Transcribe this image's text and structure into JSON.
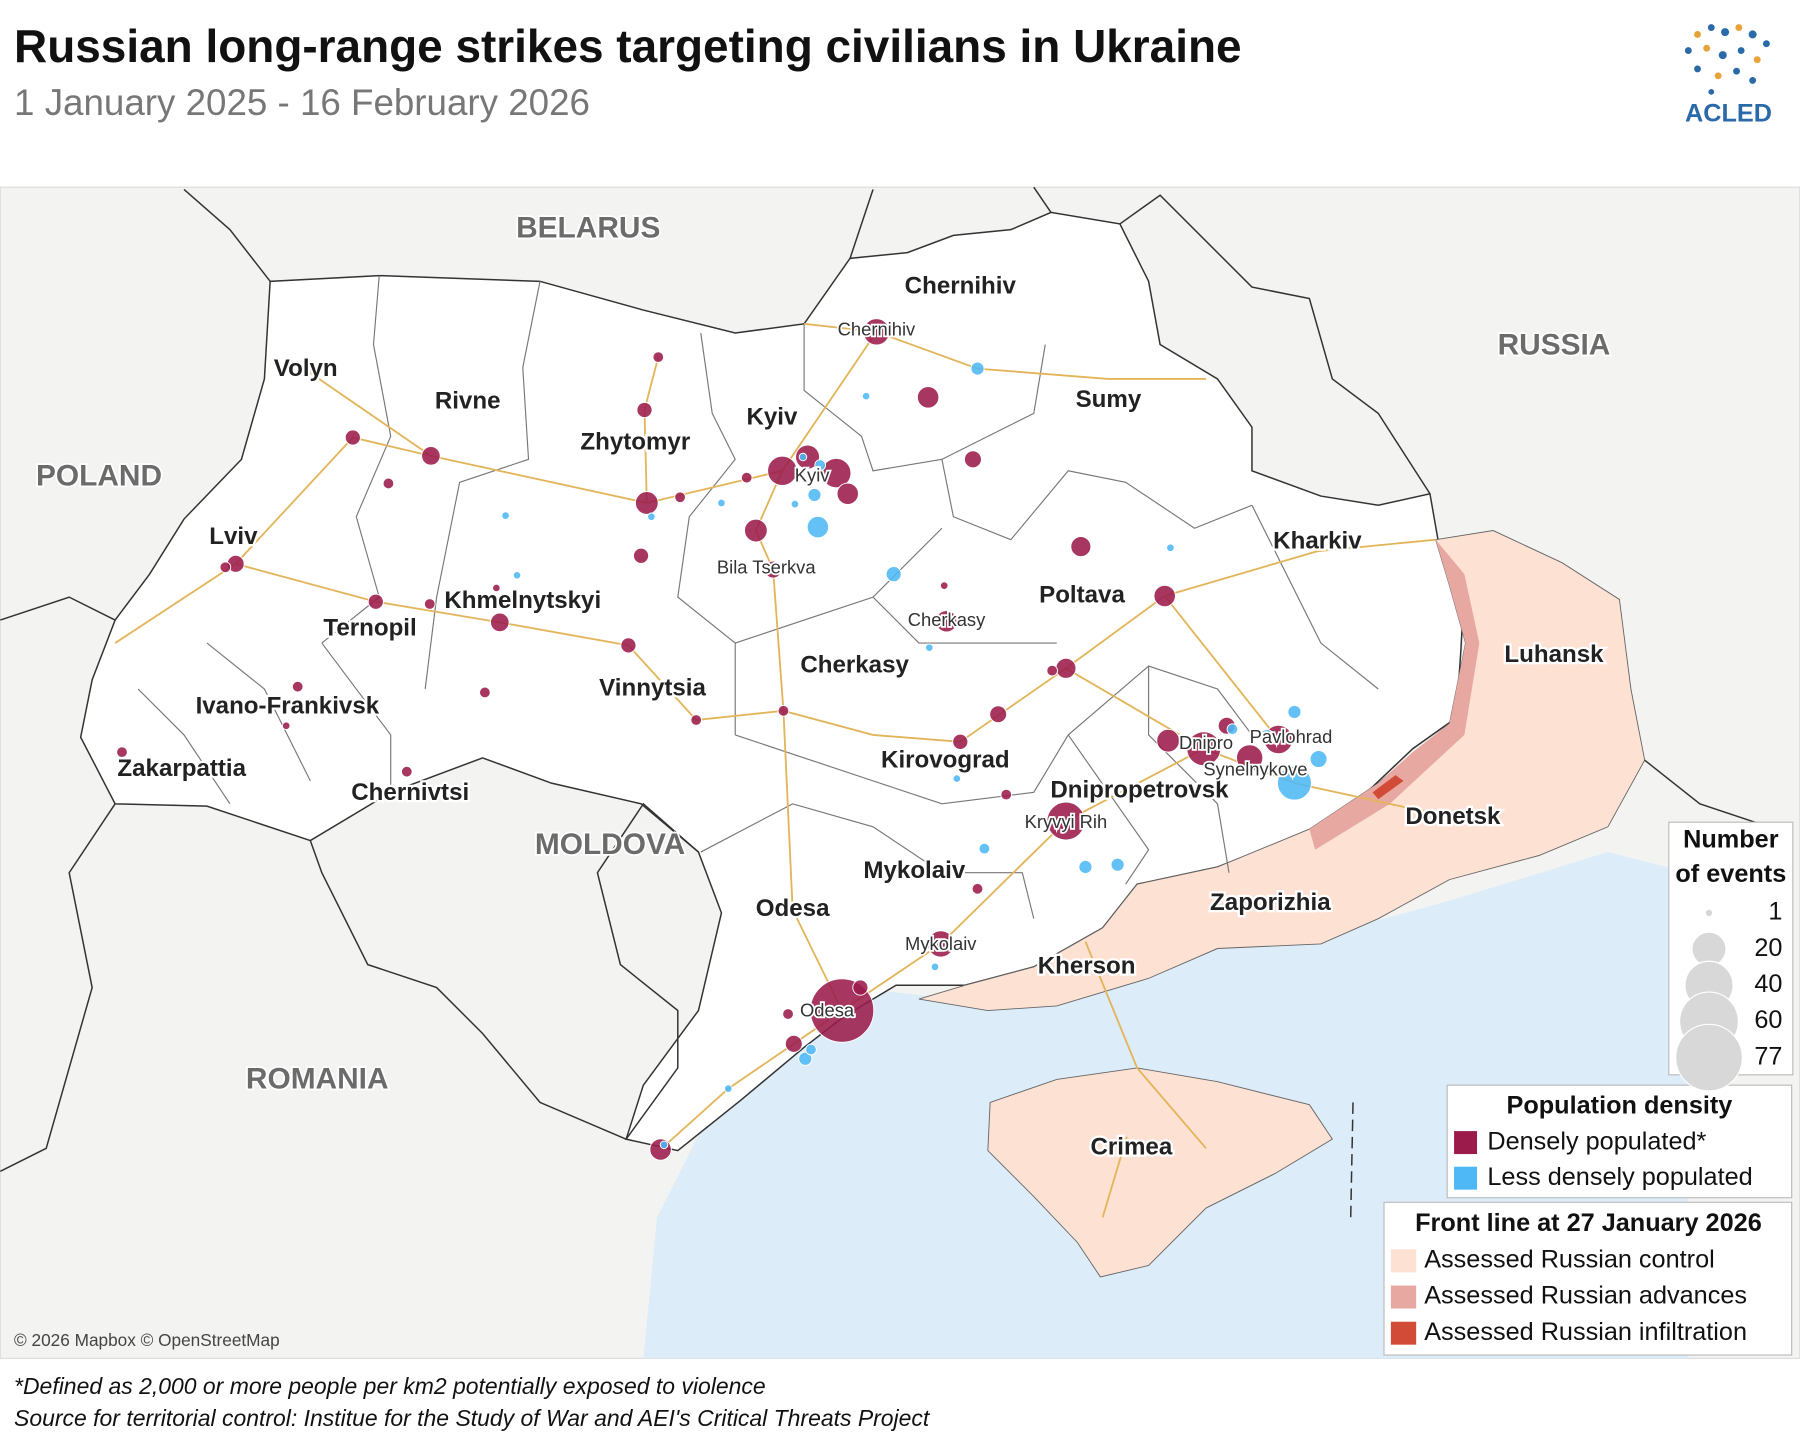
{
  "header": {
    "title": "Russian long-range strikes targeting civilians in Ukraine",
    "subtitle": "1 January 2025 -  16 February 2026",
    "logo": "ACLED"
  },
  "map": {
    "countries": [
      "BELARUS",
      "RUSSIA",
      "POLAND",
      "MOLDOVA",
      "ROMANIA"
    ],
    "oblasts": [
      "Chernihiv",
      "Volyn",
      "Rivne",
      "Zhytomyr",
      "Kyiv",
      "Sumy",
      "Lviv",
      "Khmelnytskyi",
      "Ternopil",
      "Kharkiv",
      "Poltava",
      "Cherkasy",
      "Luhansk",
      "Vinnytsia",
      "Ivano-Frankivsk",
      "Kirovograd",
      "Zakarpattia",
      "Chernivtsi",
      "Dnipropetrovsk",
      "Donetsk",
      "Mykolaiv",
      "Odesa",
      "Zaporizhia",
      "Kherson",
      "Crimea"
    ],
    "cities": [
      "Chernihiv",
      "Kyiv",
      "Bila Tserkva",
      "Cherkasy",
      "Dnipro",
      "Pavlohrad",
      "Synelnykove",
      "Kryvyi Rih",
      "Mykolaiv",
      "Odesa"
    ],
    "attribution": "© 2026 Mapbox © OpenStreetMap"
  },
  "events": {
    "series": [
      {
        "name": "Densely populated*",
        "color": "#9b1b4b",
        "values": [
          12,
          8,
          5,
          2,
          4,
          4,
          6,
          2,
          9,
          2,
          2,
          15,
          10,
          15,
          8,
          9,
          4,
          5,
          2,
          4,
          2,
          1,
          6,
          4,
          5,
          1,
          8,
          7,
          8,
          7,
          2,
          5,
          4,
          2,
          2,
          2,
          2,
          1,
          2,
          2,
          2,
          9,
          20,
          5,
          12,
          14,
          25,
          2,
          12,
          70,
          4,
          2,
          5,
          8
        ]
      },
      {
        "name": "Less densely populated",
        "color": "#4db8f5",
        "values": [
          3,
          1,
          1,
          1,
          1,
          1,
          8,
          1,
          1,
          2,
          3,
          4,
          1,
          1,
          3,
          2,
          5,
          20,
          3,
          1,
          2,
          3,
          3,
          1,
          3,
          2,
          1,
          1
        ]
      }
    ]
  },
  "legend": {
    "size_title": "Number of events",
    "sizes": [
      1,
      20,
      40,
      60,
      77
    ],
    "density_title": "Population density",
    "front_title": "Front line at 27 January 2026",
    "front_items": [
      {
        "label": "Assessed Russian control",
        "color": "#fde1d3"
      },
      {
        "label": "Assessed Russian advances",
        "color": "#e8a8a2"
      },
      {
        "label": "Assessed Russian infiltration",
        "color": "#d24b36"
      }
    ]
  },
  "notes": [
    "*Defined as 2,000 or more people per km2 potentially exposed to violence",
    "Source for territorial control: Institue for the Study of War and AEI's Critical Threats Project"
  ]
}
